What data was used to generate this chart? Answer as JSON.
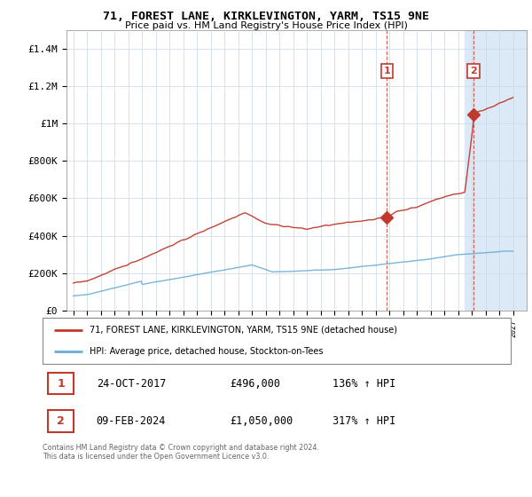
{
  "title": "71, FOREST LANE, KIRKLEVINGTON, YARM, TS15 9NE",
  "subtitle": "Price paid vs. HM Land Registry's House Price Index (HPI)",
  "ylim": [
    0,
    1500000
  ],
  "yticks": [
    0,
    200000,
    400000,
    600000,
    800000,
    1000000,
    1200000,
    1400000
  ],
  "ytick_labels": [
    "£0",
    "£200K",
    "£400K",
    "£600K",
    "£800K",
    "£1M",
    "£1.2M",
    "£1.4M"
  ],
  "hpi_color": "#6baed6",
  "price_color": "#c0392b",
  "shaded_color": "#dce9f7",
  "point1_x": 2017.82,
  "point1_y": 496000,
  "point2_x": 2024.12,
  "point2_y": 1050000,
  "shade_start": 2023.5,
  "xmin": 1994.5,
  "xmax": 2028.0,
  "legend_line1": "71, FOREST LANE, KIRKLEVINGTON, YARM, TS15 9NE (detached house)",
  "legend_line2": "HPI: Average price, detached house, Stockton-on-Tees",
  "footer": "Contains HM Land Registry data © Crown copyright and database right 2024.\nThis data is licensed under the Open Government Licence v3.0.",
  "table_rows": [
    {
      "num": "1",
      "date": "24-OCT-2017",
      "price": "£496,000",
      "hpi": "136% ↑ HPI"
    },
    {
      "num": "2",
      "date": "09-FEB-2024",
      "price": "£1,050,000",
      "hpi": "317% ↑ HPI"
    }
  ]
}
